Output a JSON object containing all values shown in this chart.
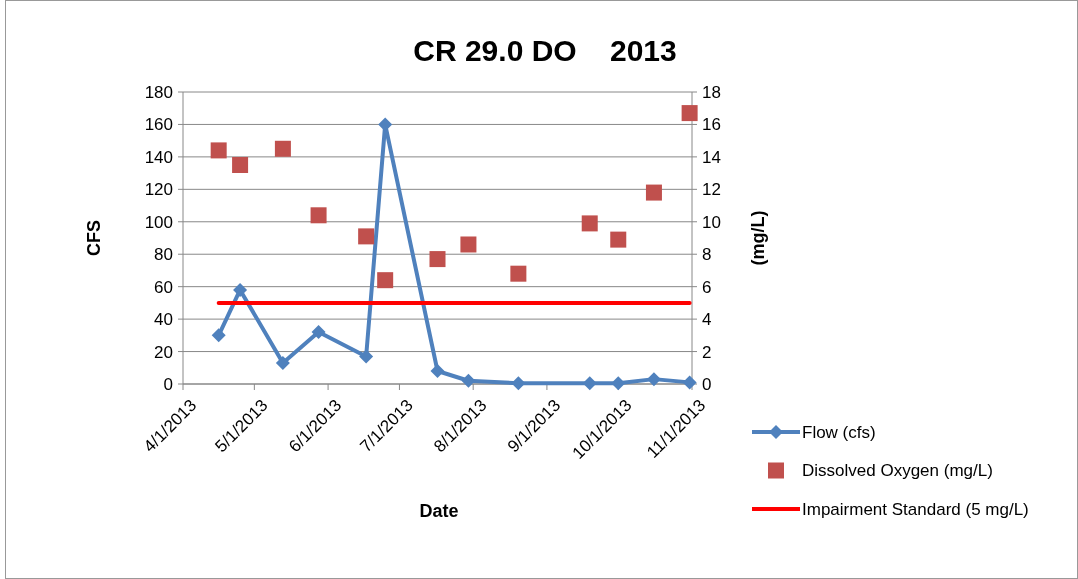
{
  "chart_data": {
    "type": "line",
    "title": "CR 29.0 DO    2013",
    "xlabel": "Date",
    "ylabel": "CFS",
    "y2label": "(mg/L)",
    "xlim": [
      "2013-04-01",
      "2013-11-01"
    ],
    "xticks": [
      {
        "value": "2013-04-01",
        "label": "4/1/2013"
      },
      {
        "value": "2013-05-01",
        "label": "5/1/2013"
      },
      {
        "value": "2013-06-01",
        "label": "6/1/2013"
      },
      {
        "value": "2013-07-01",
        "label": "7/1/2013"
      },
      {
        "value": "2013-08-01",
        "label": "8/1/2013"
      },
      {
        "value": "2013-09-01",
        "label": "9/1/2013"
      },
      {
        "value": "2013-10-01",
        "label": "10/1/2013"
      },
      {
        "value": "2013-11-01",
        "label": "11/1/2013"
      }
    ],
    "ylim": [
      0,
      180
    ],
    "yticks": [
      0,
      20,
      40,
      60,
      80,
      100,
      120,
      140,
      160,
      180
    ],
    "y2lim": [
      0,
      18
    ],
    "y2ticks": [
      0,
      2,
      4,
      6,
      8,
      10,
      12,
      14,
      16,
      18
    ],
    "grid": "y",
    "legend": "right",
    "series": [
      {
        "name": "Flow (cfs)",
        "color": "#4f81bd",
        "marker": "diamond",
        "x": [
          "2013-04-16",
          "2013-04-25",
          "2013-05-13",
          "2013-05-28",
          "2013-06-17",
          "2013-06-25",
          "2013-07-17",
          "2013-07-30",
          "2013-08-20",
          "2013-09-19",
          "2013-10-01",
          "2013-10-16",
          "2013-10-31"
        ],
        "values": [
          30,
          58,
          13,
          32,
          17,
          160,
          8,
          2,
          0.5,
          0.5,
          0.5,
          3,
          1
        ]
      },
      {
        "name": "Dissolved Oxygen (mg/L)",
        "type": "scatter",
        "axis": "y2",
        "color": "#c0504d",
        "marker": "square",
        "x": [
          "2013-04-16",
          "2013-04-25",
          "2013-05-13",
          "2013-05-28",
          "2013-06-17",
          "2013-06-25",
          "2013-07-17",
          "2013-07-30",
          "2013-08-20",
          "2013-09-19",
          "2013-10-01",
          "2013-10-16",
          "2013-10-31"
        ],
        "values": [
          14.4,
          13.5,
          14.5,
          10.4,
          9.1,
          6.4,
          7.7,
          8.6,
          6.8,
          9.9,
          8.9,
          11.8,
          16.7
        ]
      },
      {
        "name": "Impairment Standard (5 mg/L)",
        "axis": "y2",
        "color": "#ff0000",
        "marker": "none",
        "x": [
          "2013-04-16",
          "2013-10-31"
        ],
        "values": [
          5,
          5
        ]
      }
    ]
  }
}
